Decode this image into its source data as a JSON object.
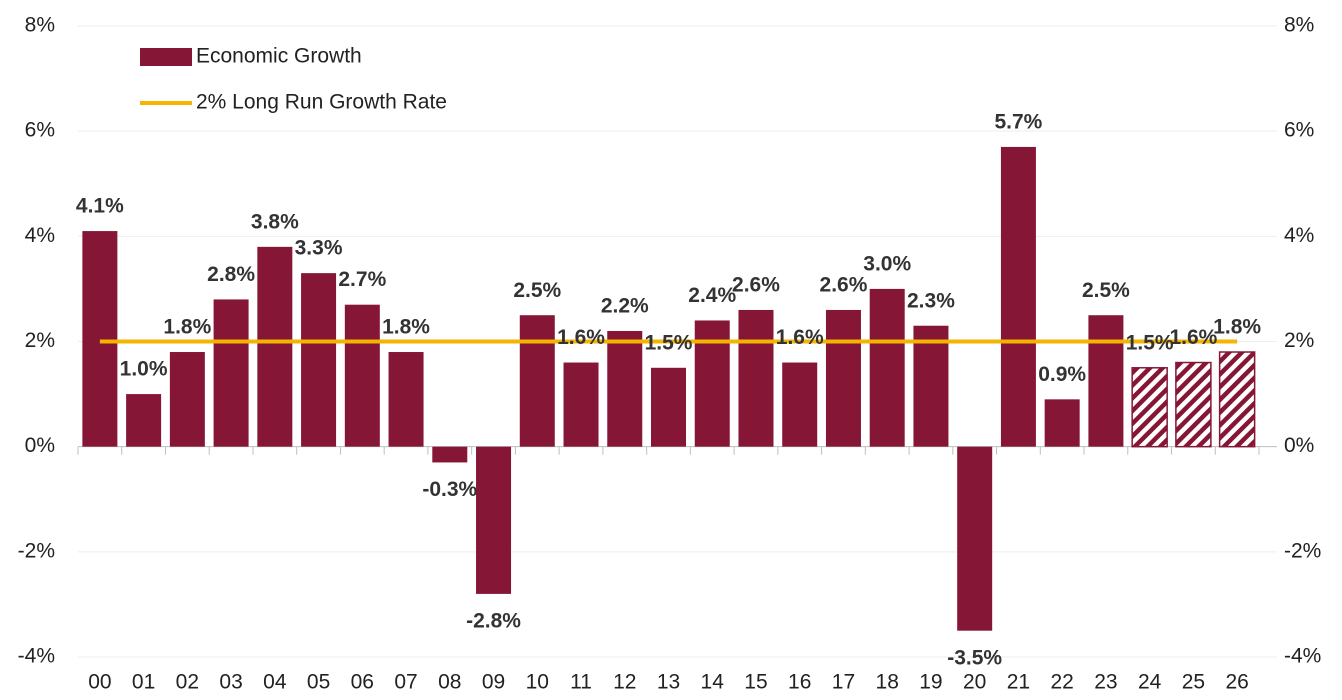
{
  "chart_data": {
    "type": "bar",
    "categories": [
      "00",
      "01",
      "02",
      "03",
      "04",
      "05",
      "06",
      "07",
      "08",
      "09",
      "10",
      "11",
      "12",
      "13",
      "14",
      "15",
      "16",
      "17",
      "18",
      "19",
      "20",
      "21",
      "22",
      "23",
      "24",
      "25",
      "26"
    ],
    "series": [
      {
        "name": "Economic Growth",
        "type": "bar",
        "color": "#861636",
        "values": [
          4.1,
          1.0,
          1.8,
          2.8,
          3.8,
          3.3,
          2.7,
          1.8,
          -0.3,
          -2.8,
          2.5,
          1.6,
          2.2,
          1.5,
          2.4,
          2.6,
          1.6,
          2.6,
          3.0,
          2.3,
          -3.5,
          5.7,
          0.9,
          2.5,
          1.5,
          1.6,
          1.8
        ],
        "value_labels": [
          "4.1%",
          "1.0%",
          "1.8%",
          "2.8%",
          "3.8%",
          "3.3%",
          "2.7%",
          "1.8%",
          "-0.3%",
          "-2.8%",
          "2.5%",
          "1.6%",
          "2.2%",
          "1.5%",
          "2.4%",
          "2.6%",
          "1.6%",
          "2.6%",
          "3.0%",
          "2.3%",
          "-3.5%",
          "5.7%",
          "0.9%",
          "2.5%",
          "1.5%",
          "1.6%",
          "1.8%"
        ],
        "hatched_categories": [
          "24",
          "25",
          "26"
        ]
      },
      {
        "name": "2% Long Run Growth Rate",
        "type": "line",
        "color": "#f5b400",
        "values": [
          2,
          2,
          2,
          2,
          2,
          2,
          2,
          2,
          2,
          2,
          2,
          2,
          2,
          2,
          2,
          2,
          2,
          2,
          2,
          2,
          2,
          2,
          2,
          2,
          2,
          2,
          2
        ]
      }
    ],
    "ylim": [
      -4,
      8
    ],
    "yticks": [
      {
        "value": -4,
        "label": "-4%"
      },
      {
        "value": -2,
        "label": "-2%"
      },
      {
        "value": 0,
        "label": "0%"
      },
      {
        "value": 2,
        "label": "2%"
      },
      {
        "value": 4,
        "label": "4%"
      },
      {
        "value": 6,
        "label": "6%"
      },
      {
        "value": 8,
        "label": "8%"
      }
    ],
    "y2lim": [
      -4,
      8
    ],
    "y2ticks": [
      {
        "value": -4,
        "label": "-4%"
      },
      {
        "value": -2,
        "label": "-2%"
      },
      {
        "value": 0,
        "label": "0%"
      },
      {
        "value": 2,
        "label": "2%"
      },
      {
        "value": 4,
        "label": "4%"
      },
      {
        "value": 6,
        "label": "6%"
      },
      {
        "value": 8,
        "label": "8%"
      }
    ],
    "grid": true,
    "legend": "upper left"
  }
}
